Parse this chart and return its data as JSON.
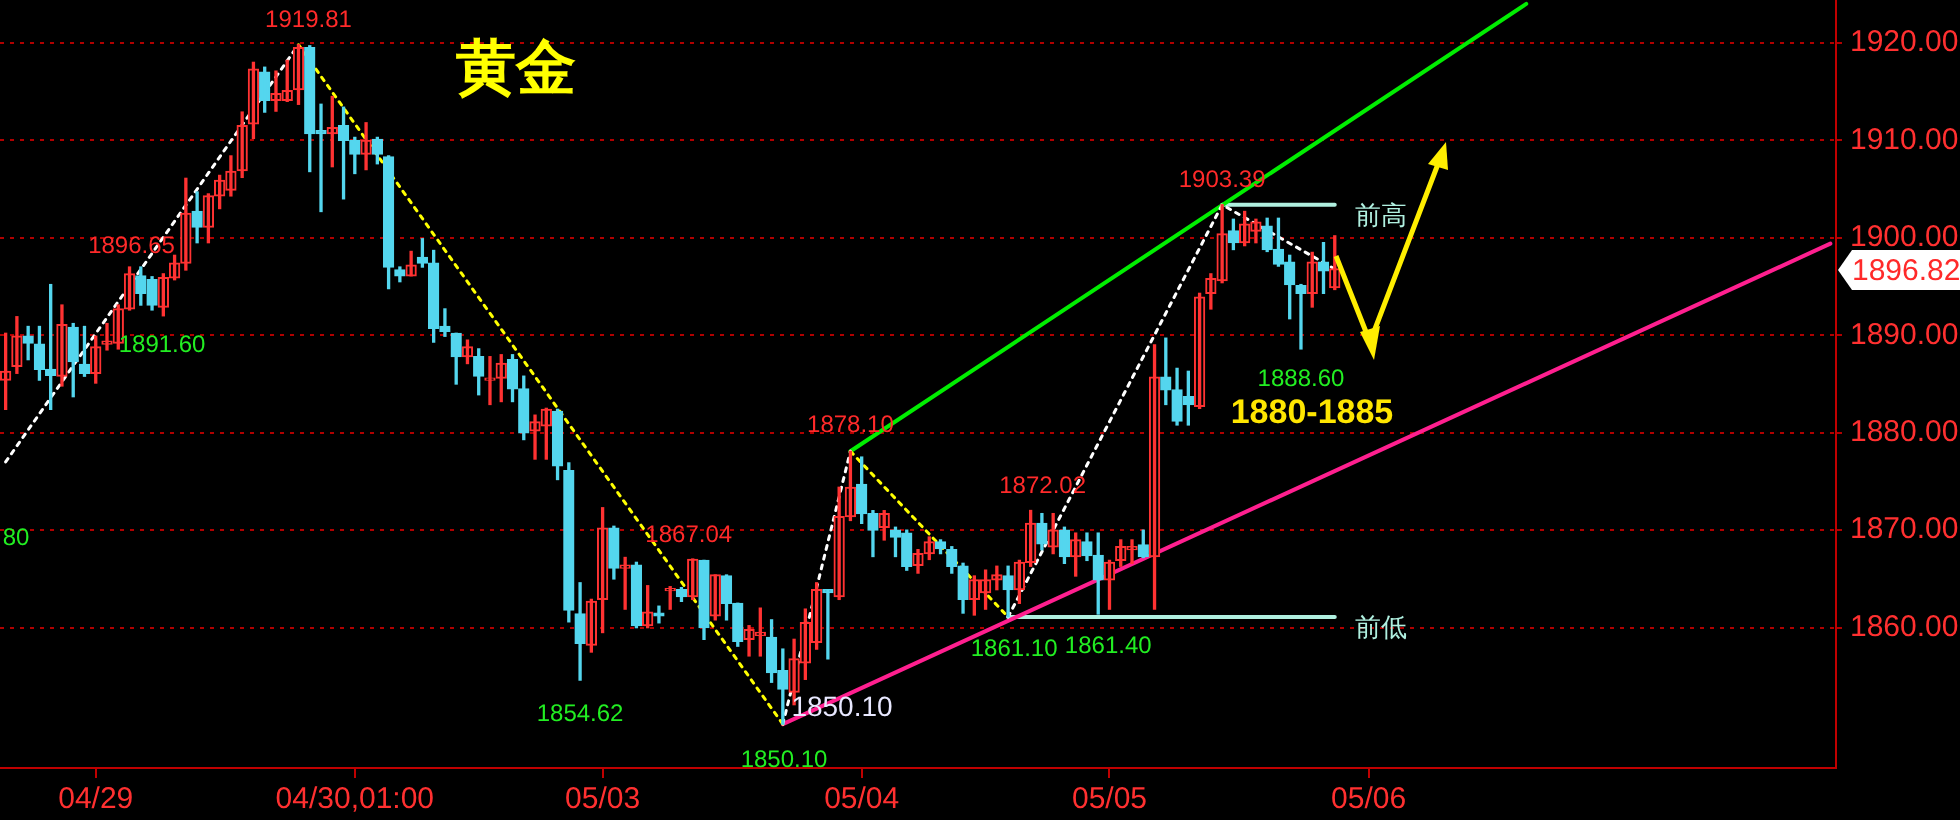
{
  "chart_data": {
    "type": "candlestick",
    "title": "黄金",
    "categories": [
      null,
      null,
      null,
      null,
      null,
      null,
      null,
      null,
      "04/29",
      null,
      null,
      null,
      null,
      null,
      null,
      null,
      null,
      null,
      null,
      null,
      null,
      null,
      null,
      null,
      null,
      null,
      null,
      null,
      null,
      null,
      null,
      "04/30,01:00",
      null,
      null,
      null,
      null,
      null,
      null,
      null,
      null,
      null,
      null,
      null,
      null,
      null,
      null,
      null,
      null,
      null,
      null,
      null,
      null,
      null,
      "05/03",
      null,
      null,
      null,
      null,
      null,
      null,
      null,
      null,
      null,
      null,
      null,
      null,
      null,
      null,
      null,
      null,
      null,
      null,
      null,
      null,
      null,
      null,
      "05/04",
      null,
      null,
      null,
      null,
      null,
      null,
      null,
      null,
      null,
      null,
      null,
      null,
      null,
      null,
      null,
      null,
      null,
      null,
      null,
      null,
      null,
      "05/05",
      null,
      null,
      null,
      null,
      null,
      null,
      null,
      null,
      null,
      null,
      null,
      null,
      null,
      null,
      null,
      null,
      null,
      null,
      null,
      null,
      null,
      null,
      "05/06",
      null,
      null,
      null,
      null,
      null,
      null,
      null,
      null,
      null,
      null,
      null,
      null,
      null,
      null,
      null,
      null,
      null,
      null,
      null,
      null,
      null,
      null,
      null,
      null,
      null,
      null,
      null,
      null,
      null,
      null,
      null,
      null,
      null,
      null,
      null,
      null,
      null,
      null,
      null,
      null,
      null
    ],
    "ohlc": [
      [
        1885.4,
        1890.2,
        1882.4,
        1886.3
      ],
      [
        1886.8,
        1891.9,
        1886.1,
        1889.9
      ],
      [
        1889.9,
        1890.9,
        1887.5,
        1889.2
      ],
      [
        1889.1,
        1890.9,
        1885.4,
        1886.5
      ],
      [
        1886.5,
        1895.2,
        1882.4,
        1885.9
      ],
      [
        1885.8,
        1893.1,
        1884.8,
        1891.1
      ],
      [
        1890.8,
        1891.2,
        1883.7,
        1887.3
      ],
      [
        1887.0,
        1890.9,
        1885.8,
        1886.1
      ],
      [
        1886.1,
        1889.9,
        1885.1,
        1888.8
      ],
      [
        1889.1,
        1891.2,
        1888.5,
        1889.4
      ],
      [
        1889.2,
        1893.1,
        1888.6,
        1892.7
      ],
      [
        1892.7,
        1897.0,
        1892.6,
        1896.3
      ],
      [
        1896.1,
        1897.0,
        1893.1,
        1894.3
      ],
      [
        1895.7,
        1896.0,
        1892.6,
        1893.1
      ],
      [
        1892.9,
        1896.3,
        1892.0,
        1895.9
      ],
      [
        1895.9,
        1898.2,
        1895.7,
        1897.4
      ],
      [
        1897.4,
        1906.1,
        1896.7,
        1902.5
      ],
      [
        1902.7,
        1904.7,
        1899.5,
        1901.1
      ],
      [
        1901.1,
        1904.5,
        1899.5,
        1904.3
      ],
      [
        1904.3,
        1906.4,
        1903.0,
        1905.9
      ],
      [
        1904.9,
        1908.4,
        1904.3,
        1906.8
      ],
      [
        1906.9,
        1912.9,
        1906.2,
        1911.5
      ],
      [
        1911.7,
        1918.0,
        1910.2,
        1917.3
      ],
      [
        1917.0,
        1917.5,
        1912.9,
        1914.1
      ],
      [
        1914.1,
        1917.1,
        1913.0,
        1914.8
      ],
      [
        1914.1,
        1918.2,
        1914.0,
        1915.1
      ],
      [
        1915.2,
        1919.81,
        1913.7,
        1919.5
      ],
      [
        1919.5,
        1919.7,
        1906.8,
        1910.7
      ],
      [
        1911.0,
        1913.7,
        1902.7,
        1910.7
      ],
      [
        1910.7,
        1914.5,
        1907.3,
        1911.3
      ],
      [
        1911.5,
        1913.4,
        1904.0,
        1910.0
      ],
      [
        1910.0,
        1910.3,
        1906.6,
        1908.6
      ],
      [
        1908.6,
        1911.8,
        1907.0,
        1910.0
      ],
      [
        1910.1,
        1910.3,
        1907.6,
        1908.6
      ],
      [
        1908.3,
        1908.4,
        1894.8,
        1897.0
      ],
      [
        1896.7,
        1897.0,
        1895.5,
        1896.1
      ],
      [
        1896.1,
        1898.6,
        1896.1,
        1897.2
      ],
      [
        1898.0,
        1899.9,
        1897.0,
        1897.4
      ],
      [
        1897.4,
        1898.7,
        1889.3,
        1890.7
      ],
      [
        1890.9,
        1892.7,
        1889.9,
        1890.4
      ],
      [
        1890.2,
        1890.2,
        1885.0,
        1887.8
      ],
      [
        1887.8,
        1889.5,
        1887.1,
        1888.8
      ],
      [
        1887.8,
        1888.6,
        1883.9,
        1885.8
      ],
      [
        1885.4,
        1887.8,
        1882.9,
        1885.6
      ],
      [
        1885.6,
        1888.0,
        1883.2,
        1887.1
      ],
      [
        1887.5,
        1888.0,
        1883.2,
        1884.5
      ],
      [
        1884.5,
        1885.8,
        1879.3,
        1880.0
      ],
      [
        1880.2,
        1881.8,
        1877.3,
        1881.1
      ],
      [
        1880.7,
        1882.5,
        1877.3,
        1882.4
      ],
      [
        1882.2,
        1882.4,
        1875.2,
        1876.6
      ],
      [
        1876.1,
        1876.9,
        1860.6,
        1861.8
      ],
      [
        1861.4,
        1864.6,
        1854.62,
        1858.4
      ],
      [
        1858.2,
        1862.9,
        1857.5,
        1862.7
      ],
      [
        1862.9,
        1872.3,
        1859.5,
        1870.2
      ],
      [
        1870.2,
        1870.4,
        1865.0,
        1866.1
      ],
      [
        1866.1,
        1867.2,
        1861.9,
        1866.4
      ],
      [
        1866.4,
        1866.7,
        1860.0,
        1860.2
      ],
      [
        1860.2,
        1864.3,
        1860.0,
        1861.6
      ],
      [
        1861.5,
        1862.2,
        1860.5,
        1861.2
      ],
      [
        1863.8,
        1864.2,
        1861.9,
        1864.0
      ],
      [
        1863.9,
        1864.1,
        1862.7,
        1863.2
      ],
      [
        1863.2,
        1867.04,
        1862.9,
        1867.0
      ],
      [
        1866.9,
        1866.9,
        1858.8,
        1860.0
      ],
      [
        1861.2,
        1865.4,
        1860.8,
        1865.4
      ],
      [
        1865.3,
        1865.4,
        1860.8,
        1862.5
      ],
      [
        1862.5,
        1862.5,
        1858.1,
        1858.6
      ],
      [
        1858.8,
        1860.2,
        1857.1,
        1859.8
      ],
      [
        1859.2,
        1862.0,
        1857.1,
        1859.5
      ],
      [
        1859.0,
        1860.8,
        1854.4,
        1855.4
      ],
      [
        1855.6,
        1857.8,
        1850.1,
        1853.7
      ],
      [
        1853.4,
        1858.8,
        1852.1,
        1856.8
      ],
      [
        1856.4,
        1861.9,
        1854.7,
        1860.5
      ],
      [
        1858.5,
        1864.6,
        1857.8,
        1863.9
      ],
      [
        1863.9,
        1863.9,
        1856.8,
        1863.6
      ],
      [
        1863.2,
        1874.4,
        1862.9,
        1871.4
      ],
      [
        1871.4,
        1878.1,
        1871.0,
        1874.4
      ],
      [
        1874.7,
        1877.5,
        1870.7,
        1871.7
      ],
      [
        1871.7,
        1872.0,
        1867.3,
        1870.0
      ],
      [
        1870.3,
        1872.0,
        1869.0,
        1871.7
      ],
      [
        1870.0,
        1870.3,
        1867.3,
        1869.3
      ],
      [
        1869.7,
        1870.0,
        1865.9,
        1866.3
      ],
      [
        1866.4,
        1868.0,
        1865.6,
        1867.6
      ],
      [
        1867.6,
        1869.3,
        1867.0,
        1868.8
      ],
      [
        1868.8,
        1869.0,
        1867.6,
        1868.1
      ],
      [
        1868.0,
        1868.3,
        1865.6,
        1866.3
      ],
      [
        1866.3,
        1866.6,
        1861.5,
        1862.9
      ],
      [
        1862.9,
        1865.3,
        1861.3,
        1864.9
      ],
      [
        1863.6,
        1865.9,
        1861.9,
        1864.9
      ],
      [
        1864.9,
        1866.3,
        1863.9,
        1865.4
      ],
      [
        1865.3,
        1866.3,
        1861.1,
        1863.9
      ],
      [
        1863.9,
        1866.9,
        1862.5,
        1866.7
      ],
      [
        1866.7,
        1872.02,
        1866.3,
        1870.7
      ],
      [
        1870.7,
        1871.7,
        1868.0,
        1868.6
      ],
      [
        1868.3,
        1871.7,
        1867.6,
        1870.0
      ],
      [
        1870.0,
        1870.3,
        1866.6,
        1867.3
      ],
      [
        1867.3,
        1869.7,
        1865.3,
        1869.0
      ],
      [
        1868.8,
        1869.7,
        1866.9,
        1867.4
      ],
      [
        1867.4,
        1869.7,
        1861.4,
        1864.9
      ],
      [
        1864.9,
        1866.9,
        1861.9,
        1866.7
      ],
      [
        1866.9,
        1869.0,
        1866.3,
        1868.3
      ],
      [
        1868.0,
        1869.0,
        1866.6,
        1868.3
      ],
      [
        1868.5,
        1870.0,
        1867.2,
        1867.3
      ],
      [
        1867.3,
        1889.0,
        1861.9,
        1885.7
      ],
      [
        1885.7,
        1889.7,
        1882.9,
        1884.4
      ],
      [
        1884.4,
        1886.6,
        1880.8,
        1881.2
      ],
      [
        1883.7,
        1886.3,
        1880.8,
        1882.9
      ],
      [
        1882.7,
        1894.3,
        1882.5,
        1893.9
      ],
      [
        1894.3,
        1896.3,
        1892.7,
        1895.8
      ],
      [
        1895.6,
        1903.39,
        1895.4,
        1900.4
      ],
      [
        1900.7,
        1901.9,
        1898.8,
        1899.5
      ],
      [
        1899.5,
        1902.7,
        1899.2,
        1901.4
      ],
      [
        1900.7,
        1901.9,
        1899.5,
        1901.6
      ],
      [
        1901.2,
        1902.0,
        1898.6,
        1898.8
      ],
      [
        1898.8,
        1902.0,
        1897.1,
        1897.3
      ],
      [
        1897.5,
        1898.2,
        1891.7,
        1895.2
      ],
      [
        1895.1,
        1895.2,
        1888.6,
        1894.3
      ],
      [
        1894.3,
        1898.5,
        1892.9,
        1897.5
      ],
      [
        1897.5,
        1899.5,
        1894.3,
        1896.6
      ],
      [
        1894.9,
        1900.2,
        1894.7,
        1896.82
      ],
      null,
      null,
      null,
      null,
      null,
      null,
      null,
      null,
      null,
      null,
      null,
      null,
      null,
      null,
      null,
      null,
      null,
      null,
      null,
      null,
      null,
      null,
      null,
      null,
      null,
      null,
      null,
      null,
      null,
      null,
      null,
      null,
      null,
      null,
      null,
      null,
      null,
      null,
      null,
      null,
      null,
      null,
      null,
      null
    ],
    "series": [
      {
        "type": "line",
        "color": "#ffffff",
        "line_style": "dotted",
        "values": [
          1877.0,
          null,
          null,
          null,
          null,
          null,
          null,
          null,
          null,
          null,
          null,
          null,
          null,
          null,
          null,
          null,
          null,
          null,
          null,
          null,
          null,
          null,
          null,
          null,
          null,
          null,
          1919.81,
          null,
          null,
          null,
          null,
          null,
          null,
          null,
          null,
          null,
          null,
          null,
          null,
          null,
          null,
          null,
          null,
          null,
          null,
          null,
          null,
          null,
          null,
          null,
          null,
          null,
          null,
          null,
          null,
          null,
          null,
          null,
          null,
          null,
          null,
          null,
          null,
          null,
          null,
          null,
          null,
          null,
          null,
          null,
          null,
          null,
          null,
          null,
          null,
          null,
          null,
          null,
          null,
          null,
          null,
          null,
          null,
          null,
          null,
          null,
          null,
          null,
          null,
          null,
          null,
          null,
          null,
          null,
          null,
          null,
          null,
          null,
          null,
          null,
          null,
          null,
          null,
          null,
          null,
          null,
          null,
          null,
          null,
          null,
          null,
          null,
          null,
          null,
          null,
          null,
          null,
          null,
          null,
          null,
          null,
          null,
          null,
          null,
          null,
          null,
          null,
          null,
          null,
          null,
          null,
          null,
          null,
          null,
          null,
          null,
          null,
          null,
          null,
          null,
          null,
          null,
          null,
          null,
          null,
          null,
          null,
          null,
          null,
          null,
          null,
          null,
          null,
          null,
          null,
          null,
          null,
          null,
          null,
          null,
          null,
          null,
          null
        ]
      },
      {
        "type": "line",
        "color": "#ffff00",
        "line_style": "dotted",
        "values": [
          null,
          null,
          null,
          null,
          null,
          null,
          null,
          null,
          null,
          null,
          null,
          null,
          null,
          null,
          null,
          null,
          null,
          null,
          null,
          null,
          null,
          null,
          null,
          null,
          null,
          null,
          1919.81,
          null,
          null,
          null,
          null,
          null,
          null,
          null,
          null,
          null,
          null,
          null,
          null,
          null,
          null,
          null,
          null,
          null,
          null,
          null,
          null,
          null,
          null,
          null,
          null,
          null,
          null,
          null,
          null,
          null,
          null,
          null,
          null,
          null,
          null,
          null,
          null,
          null,
          null,
          null,
          null,
          null,
          null,
          1850.1,
          null,
          null,
          null,
          null,
          null,
          null,
          null,
          null,
          null,
          null,
          null,
          null,
          null,
          null,
          null,
          null,
          null,
          null,
          null,
          null,
          null,
          null,
          null,
          null,
          null,
          null,
          null,
          null,
          null,
          null,
          null,
          null,
          null,
          null,
          null,
          null,
          null,
          null,
          null,
          null,
          null,
          null,
          null,
          null,
          null,
          null,
          null,
          null,
          null,
          null,
          null,
          null,
          null,
          null,
          null,
          null,
          null,
          null,
          null,
          null,
          null,
          null,
          null,
          null,
          null,
          null,
          null,
          null,
          null,
          null,
          null,
          null,
          null,
          null,
          null,
          null,
          null,
          null,
          null,
          null,
          null,
          null,
          null,
          null,
          null,
          null,
          null,
          null,
          null,
          null,
          null,
          null,
          null
        ]
      },
      {
        "type": "line",
        "color": "#ffffff",
        "line_style": "dotted",
        "values": [
          null,
          null,
          null,
          null,
          null,
          null,
          null,
          null,
          null,
          null,
          null,
          null,
          null,
          null,
          null,
          null,
          null,
          null,
          null,
          null,
          null,
          null,
          null,
          null,
          null,
          null,
          null,
          null,
          null,
          null,
          null,
          null,
          null,
          null,
          null,
          null,
          null,
          null,
          null,
          null,
          null,
          null,
          null,
          null,
          null,
          null,
          null,
          null,
          null,
          null,
          null,
          null,
          null,
          null,
          null,
          null,
          null,
          null,
          null,
          null,
          null,
          null,
          null,
          null,
          null,
          null,
          null,
          null,
          null,
          1850.1,
          null,
          null,
          null,
          null,
          null,
          1878.1,
          null,
          null,
          null,
          null,
          null,
          null,
          null,
          null,
          null,
          null,
          null,
          null,
          null,
          null,
          null,
          null,
          null,
          null,
          null,
          null,
          null,
          null,
          null,
          null,
          null,
          null,
          null,
          null,
          null,
          null,
          null,
          null,
          null,
          null,
          null,
          null,
          null,
          null,
          null,
          null,
          null,
          null,
          null,
          null,
          null,
          null,
          null,
          null,
          null,
          null,
          null,
          null,
          null,
          null,
          null,
          null,
          null,
          null,
          null,
          null,
          null,
          null,
          null,
          null,
          null,
          null,
          null,
          null,
          null,
          null,
          null,
          null,
          null,
          null,
          null,
          null,
          null,
          null,
          null,
          null,
          null,
          null,
          null,
          null,
          null,
          null,
          null
        ]
      },
      {
        "type": "line",
        "color": "#ffff00",
        "line_style": "dotted",
        "values": [
          null,
          null,
          null,
          null,
          null,
          null,
          null,
          null,
          null,
          null,
          null,
          null,
          null,
          null,
          null,
          null,
          null,
          null,
          null,
          null,
          null,
          null,
          null,
          null,
          null,
          null,
          null,
          null,
          null,
          null,
          null,
          null,
          null,
          null,
          null,
          null,
          null,
          null,
          null,
          null,
          null,
          null,
          null,
          null,
          null,
          null,
          null,
          null,
          null,
          null,
          null,
          null,
          null,
          null,
          null,
          null,
          null,
          null,
          null,
          null,
          null,
          null,
          null,
          null,
          null,
          null,
          null,
          null,
          null,
          null,
          null,
          null,
          null,
          null,
          null,
          1878.1,
          null,
          null,
          null,
          null,
          null,
          null,
          null,
          null,
          null,
          null,
          null,
          null,
          null,
          1861.1,
          null,
          null,
          null,
          null,
          null,
          null,
          null,
          null,
          null,
          null,
          null,
          null,
          null,
          null,
          null,
          null,
          null,
          null,
          null,
          null,
          null,
          null,
          null,
          null,
          null,
          null,
          null,
          null,
          null,
          null,
          null,
          null,
          null,
          null,
          null,
          null,
          null,
          null,
          null,
          null,
          null,
          null,
          null,
          null,
          null,
          null,
          null,
          null,
          null,
          null,
          null,
          null,
          null,
          null,
          null,
          null,
          null,
          null,
          null,
          null,
          null,
          null,
          null,
          null,
          null,
          null,
          null,
          null,
          null,
          null,
          null,
          null,
          null
        ]
      },
      {
        "type": "line",
        "color": "#ffffff",
        "line_style": "dotted",
        "values": [
          null,
          null,
          null,
          null,
          null,
          null,
          null,
          null,
          null,
          null,
          null,
          null,
          null,
          null,
          null,
          null,
          null,
          null,
          null,
          null,
          null,
          null,
          null,
          null,
          null,
          null,
          null,
          null,
          null,
          null,
          null,
          null,
          null,
          null,
          null,
          null,
          null,
          null,
          null,
          null,
          null,
          null,
          null,
          null,
          null,
          null,
          null,
          null,
          null,
          null,
          null,
          null,
          null,
          null,
          null,
          null,
          null,
          null,
          null,
          null,
          null,
          null,
          null,
          null,
          null,
          null,
          null,
          null,
          null,
          null,
          null,
          null,
          null,
          null,
          null,
          null,
          null,
          null,
          null,
          null,
          null,
          null,
          null,
          null,
          null,
          null,
          null,
          null,
          null,
          1861.1,
          null,
          null,
          null,
          null,
          null,
          null,
          null,
          null,
          null,
          null,
          null,
          null,
          null,
          null,
          null,
          null,
          null,
          null,
          1903.39,
          null,
          null,
          null,
          null,
          null,
          null,
          null,
          null,
          null,
          1896.8,
          null,
          null,
          null,
          null,
          null,
          null,
          null,
          null,
          null,
          null,
          null,
          null,
          null,
          null,
          null,
          null,
          null,
          null,
          null,
          null,
          null,
          null,
          null,
          null,
          null,
          null,
          null,
          null,
          null,
          null,
          null,
          null,
          null,
          null,
          null,
          null,
          null,
          null,
          null,
          null,
          null,
          null,
          null,
          null
        ]
      },
      {
        "type": "line",
        "color": "#00ee00",
        "line_style": "solid",
        "values": [
          null,
          null,
          null,
          null,
          null,
          null,
          null,
          null,
          null,
          null,
          null,
          null,
          null,
          null,
          null,
          null,
          null,
          null,
          null,
          null,
          null,
          null,
          null,
          null,
          null,
          null,
          null,
          null,
          null,
          null,
          null,
          null,
          null,
          null,
          null,
          null,
          null,
          null,
          null,
          null,
          null,
          null,
          null,
          null,
          null,
          null,
          null,
          null,
          null,
          null,
          null,
          null,
          null,
          null,
          null,
          null,
          null,
          null,
          null,
          null,
          null,
          null,
          null,
          null,
          null,
          null,
          null,
          null,
          null,
          null,
          null,
          null,
          null,
          null,
          null,
          1878.1,
          null,
          null,
          null,
          null,
          null,
          null,
          null,
          null,
          null,
          null,
          null,
          null,
          null,
          null,
          null,
          null,
          null,
          null,
          null,
          null,
          null,
          null,
          null,
          null,
          null,
          null,
          null,
          null,
          null,
          null,
          null,
          null,
          null,
          null,
          null,
          null,
          null,
          null,
          null,
          null,
          null,
          null,
          null,
          null,
          null,
          null,
          null,
          null,
          null,
          null,
          null,
          null,
          null,
          null,
          null,
          null,
          null,
          null,
          null,
          1924.0,
          null,
          null,
          null,
          null,
          null,
          null,
          null,
          null,
          null,
          null,
          null,
          null,
          null,
          null,
          null,
          null,
          null,
          null,
          null,
          null,
          null,
          null,
          null,
          null,
          null,
          null,
          null
        ]
      },
      {
        "type": "line",
        "color": "#ff1f8f",
        "line_style": "solid",
        "values": [
          null,
          null,
          null,
          null,
          null,
          null,
          null,
          null,
          null,
          null,
          null,
          null,
          null,
          null,
          null,
          null,
          null,
          null,
          null,
          null,
          null,
          null,
          null,
          null,
          null,
          null,
          null,
          null,
          null,
          null,
          null,
          null,
          null,
          null,
          null,
          null,
          null,
          null,
          null,
          null,
          null,
          null,
          null,
          null,
          null,
          null,
          null,
          null,
          null,
          null,
          null,
          null,
          null,
          null,
          null,
          null,
          null,
          null,
          null,
          null,
          null,
          null,
          null,
          null,
          null,
          null,
          null,
          null,
          null,
          1850.1,
          null,
          null,
          null,
          null,
          null,
          null,
          null,
          null,
          null,
          null,
          null,
          null,
          null,
          null,
          null,
          null,
          null,
          null,
          null,
          null,
          null,
          null,
          null,
          null,
          null,
          null,
          null,
          null,
          null,
          null,
          null,
          null,
          null,
          null,
          null,
          null,
          null,
          null,
          null,
          null,
          null,
          null,
          null,
          null,
          null,
          null,
          null,
          null,
          null,
          null,
          null,
          null,
          null,
          null,
          null,
          null,
          null,
          null,
          null,
          null,
          null,
          null,
          null,
          null,
          null,
          null,
          null,
          null,
          null,
          null,
          null,
          null,
          null,
          null,
          null,
          null,
          null,
          null,
          null,
          null,
          null,
          null,
          null,
          null,
          null,
          null,
          null,
          null,
          null,
          null,
          null,
          null,
          1899.4
        ]
      },
      {
        "type": "line",
        "name": "前高",
        "color": "#b0f0e0",
        "line_style": "solid",
        "values": [
          null,
          null,
          null,
          null,
          null,
          null,
          null,
          null,
          null,
          null,
          null,
          null,
          null,
          null,
          null,
          null,
          null,
          null,
          null,
          null,
          null,
          null,
          null,
          null,
          null,
          null,
          null,
          null,
          null,
          null,
          null,
          null,
          null,
          null,
          null,
          null,
          null,
          null,
          null,
          null,
          null,
          null,
          null,
          null,
          null,
          null,
          null,
          null,
          null,
          null,
          null,
          null,
          null,
          null,
          null,
          null,
          null,
          null,
          null,
          null,
          null,
          null,
          null,
          null,
          null,
          null,
          null,
          null,
          null,
          null,
          null,
          null,
          null,
          null,
          null,
          null,
          null,
          null,
          null,
          null,
          null,
          null,
          null,
          null,
          null,
          null,
          null,
          null,
          null,
          null,
          null,
          null,
          null,
          null,
          null,
          null,
          null,
          null,
          null,
          null,
          null,
          null,
          null,
          null,
          null,
          null,
          null,
          null,
          1903.39,
          null,
          null,
          null,
          null,
          null,
          null,
          null,
          null,
          null,
          1903.39,
          null,
          null,
          null,
          null,
          null,
          null,
          null,
          null,
          null,
          null,
          null,
          null,
          null,
          null,
          null,
          null,
          null,
          null,
          null,
          null,
          null,
          null,
          null,
          null,
          null,
          null,
          null,
          null,
          null,
          null,
          null,
          null,
          null,
          null,
          null,
          null,
          null,
          null,
          null,
          null,
          null,
          null,
          null,
          null
        ]
      },
      {
        "type": "line",
        "name": "前低",
        "color": "#b0f0e0",
        "line_style": "solid",
        "values": [
          null,
          null,
          null,
          null,
          null,
          null,
          null,
          null,
          null,
          null,
          null,
          null,
          null,
          null,
          null,
          null,
          null,
          null,
          null,
          null,
          null,
          null,
          null,
          null,
          null,
          null,
          null,
          null,
          null,
          null,
          null,
          null,
          null,
          null,
          null,
          null,
          null,
          null,
          null,
          null,
          null,
          null,
          null,
          null,
          null,
          null,
          null,
          null,
          null,
          null,
          null,
          null,
          null,
          null,
          null,
          null,
          null,
          null,
          null,
          null,
          null,
          null,
          null,
          null,
          null,
          null,
          null,
          null,
          null,
          null,
          null,
          null,
          null,
          null,
          null,
          null,
          null,
          null,
          null,
          null,
          null,
          null,
          null,
          null,
          null,
          null,
          null,
          null,
          null,
          1861.1,
          null,
          null,
          null,
          null,
          null,
          null,
          null,
          null,
          null,
          null,
          null,
          null,
          null,
          null,
          null,
          null,
          null,
          null,
          null,
          null,
          null,
          null,
          null,
          null,
          null,
          null,
          null,
          null,
          1861.1,
          null,
          null,
          null,
          null,
          null,
          null,
          null,
          null,
          null,
          null,
          null,
          null,
          null,
          null,
          null,
          null,
          null,
          null,
          null,
          null,
          null,
          null,
          null,
          null,
          null,
          null,
          null,
          null,
          null,
          null,
          null,
          null,
          null,
          null,
          null,
          null,
          null,
          null,
          null,
          null,
          null,
          null,
          null,
          null
        ]
      }
    ],
    "ylim": [
      1845.6,
      1924.4
    ],
    "yticks": [
      {
        "value": 1860,
        "label": "1860.00"
      },
      {
        "value": 1870,
        "label": "1870.00"
      },
      {
        "value": 1880,
        "label": "1880.00"
      },
      {
        "value": 1890,
        "label": "1890.00"
      },
      {
        "value": 1900,
        "label": "1900.00"
      },
      {
        "value": 1910,
        "label": "1910.00"
      },
      {
        "value": 1920,
        "label": "1920.00"
      }
    ],
    "grid": "y",
    "annotations": [
      {
        "text": "1919.81",
        "y": 1919.81
      },
      {
        "text": "1896.65",
        "y": 1896.65
      },
      {
        "text": "1891.60",
        "y": 1891.6
      },
      "80",
      {
        "text": "1854.62",
        "y": 1854.62
      },
      {
        "text": "1867.04",
        "y": 1867.04
      },
      "1850.10",
      "1850.10",
      {
        "text": "1878.10",
        "y": 1878.1
      },
      {
        "text": "1872.02",
        "y": 1872.02
      },
      {
        "text": "1861.10",
        "y": 1861.1
      },
      {
        "text": "1861.40",
        "y": 1861.4
      },
      {
        "text": "1903.39",
        "y": 1903.39
      },
      {
        "text": "1888.60",
        "y": 1888.6
      },
      "1880-1885",
      "1896.82"
    ]
  }
}
